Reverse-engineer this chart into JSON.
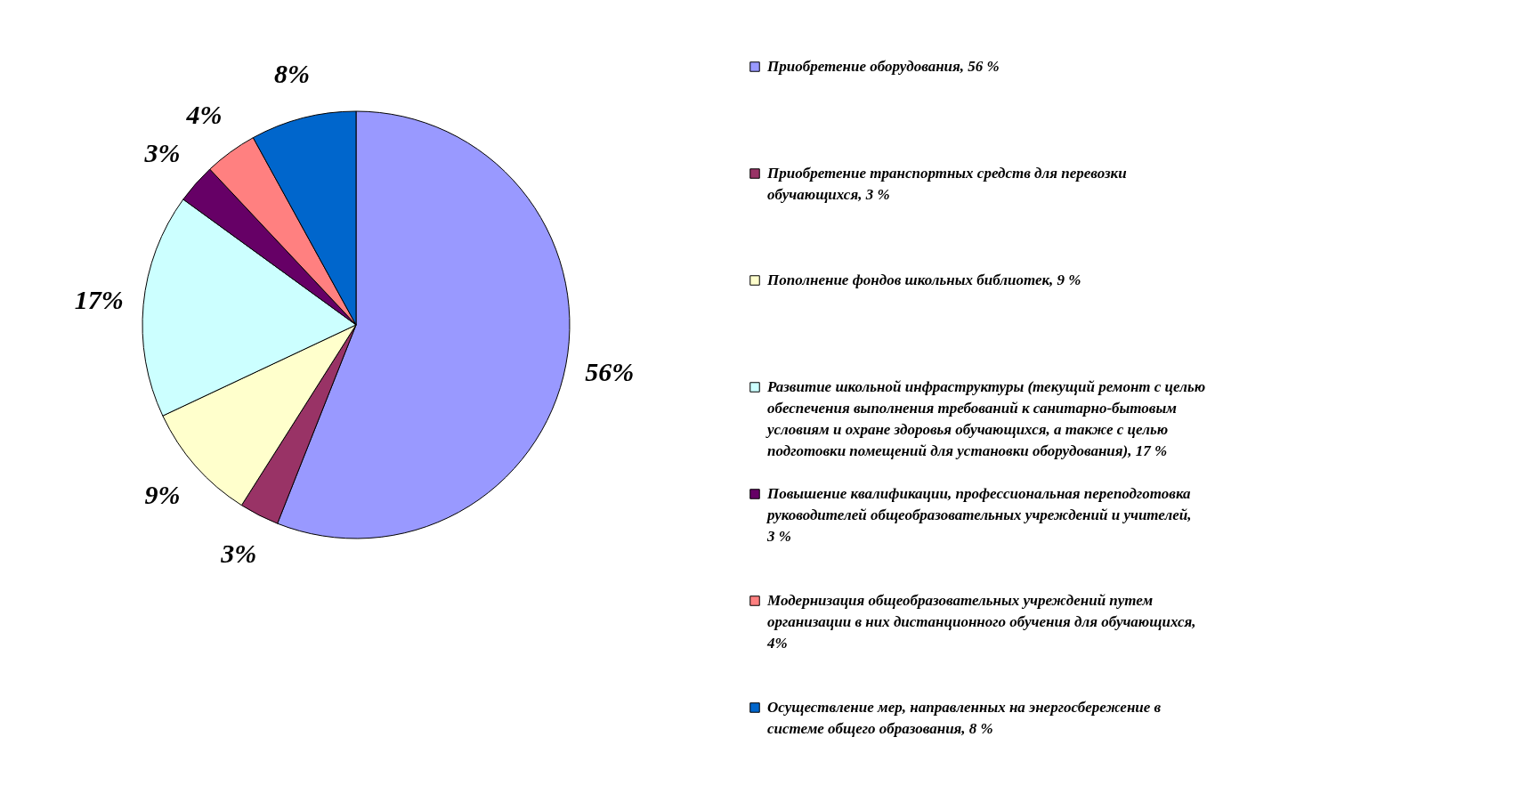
{
  "chart_data": {
    "type": "pie",
    "categories": [
      "Приобретение оборудования, 56 %",
      "Приобретение транспортных средств для перевозки обучающихся, 3 %",
      "Пополнение фондов школьных библиотек, 9 %",
      "Развитие школьной инфраструктуры (текущий ремонт с целью обеспечения выполнения требований к санитарно-бытовым условиям и охране здоровья обучающихся, а также с целью подготовки помещений для установки оборудования), 17 %",
      "Повышение квалификации, профессиональная переподготовка руководителей общеобразовательных учреждений и учителей,  3 %",
      "Модернизация общеобразовательных учреждений  путем организации в них дистанционного обучения для обучающихся, 4%",
      "Осуществление мер, направленных на  энергосбережение в системе общего образования, 8 %"
    ],
    "values": [
      56,
      3,
      9,
      17,
      3,
      4,
      8
    ],
    "colors": [
      "#9999ff",
      "#993366",
      "#ffffcc",
      "#ccffff",
      "#660066",
      "#ff8080",
      "#0066cc"
    ],
    "value_labels": [
      "56%",
      "3%",
      "9%",
      "17%",
      "3%",
      "4%",
      "8%"
    ],
    "legend": "right"
  }
}
